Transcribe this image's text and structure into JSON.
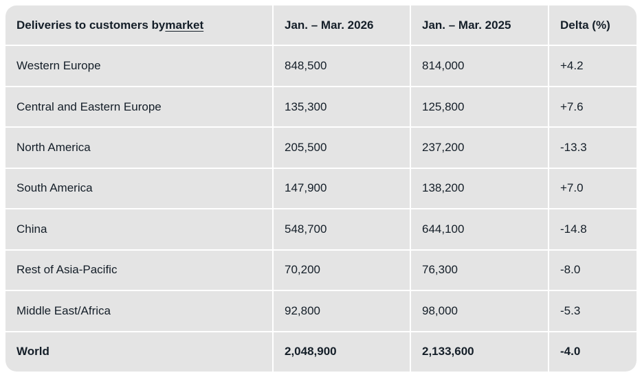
{
  "colors": {
    "page_background": "#ffffff",
    "cell_background": "#e4e4e4",
    "divider": "#ffffff",
    "text": "#141e28"
  },
  "chart_data": {
    "type": "table",
    "title": "Deliveries to customers by market",
    "header": {
      "market_prefix": "Deliveries to customers by ",
      "market_link": "market",
      "period_current": "Jan. – Mar. 2026",
      "period_prior": "Jan. – Mar. 2025",
      "delta": "Delta (%)"
    },
    "rows": [
      {
        "market": "Western Europe",
        "current": "848,500",
        "prior": "814,000",
        "delta": "+4.2"
      },
      {
        "market": "Central and Eastern Europe",
        "current": "135,300",
        "prior": "125,800",
        "delta": "+7.6"
      },
      {
        "market": "North America",
        "current": "205,500",
        "prior": "237,200",
        "delta": "-13.3"
      },
      {
        "market": "South America",
        "current": "147,900",
        "prior": "138,200",
        "delta": "+7.0"
      },
      {
        "market": "China",
        "current": "548,700",
        "prior": "644,100",
        "delta": "-14.8"
      },
      {
        "market": "Rest of Asia-Pacific",
        "current": "70,200",
        "prior": "76,300",
        "delta": "-8.0"
      },
      {
        "market": "Middle East/Africa",
        "current": "92,800",
        "prior": "98,000",
        "delta": "-5.3"
      },
      {
        "market": "World",
        "current": "2,048,900",
        "prior": "2,133,600",
        "delta": "-4.0"
      }
    ]
  }
}
